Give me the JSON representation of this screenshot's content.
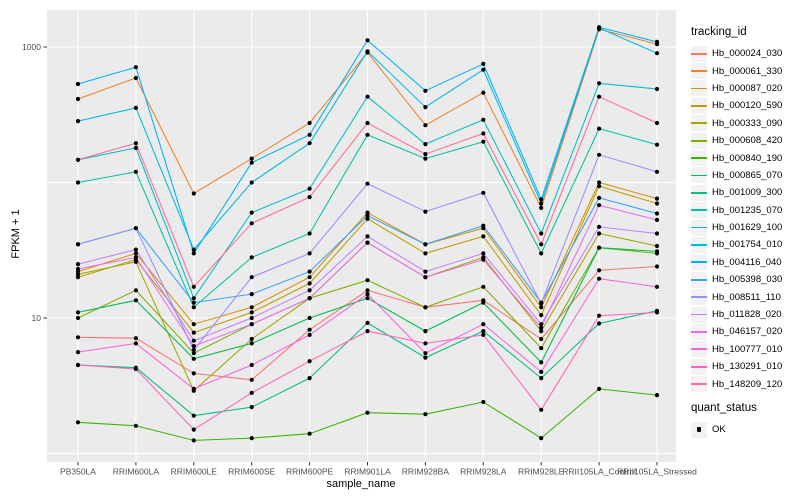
{
  "figure": {
    "y_axis_title": "FPKM + 1",
    "x_axis_title": "sample_name"
  },
  "colors": {
    "panel_background": "#EBEBEB",
    "gridline": "#FFFFFF",
    "tick_mark": "#333333",
    "tick_text": "#4D4D4D",
    "point": "#000000",
    "legend_key_background": "#F2F2F2"
  },
  "legends": {
    "tracking": {
      "title": "tracking_id"
    },
    "quant": {
      "title": "quant_status",
      "entry_label": "OK"
    }
  },
  "chart_data": {
    "type": "line",
    "title": "",
    "xlabel": "sample_name",
    "ylabel": "FPKM + 1",
    "y_scale": "log10",
    "ylim": [
      0.9,
      1800
    ],
    "y_ticks": [
      {
        "value": 10,
        "label": "10"
      },
      {
        "value": 1000,
        "label": "1000"
      }
    ],
    "y_gridlines": [
      1,
      10,
      100,
      1000
    ],
    "legend_position": "right",
    "grid": true,
    "point_marker": "black-dot-every-value",
    "categories": [
      "PB350LA",
      "RRIM600LA",
      "RRIM600LE",
      "RRIM600SE",
      "RRIM600PE",
      "RRIM901LA",
      "RRIM928BA",
      "RRIM928LA",
      "RRIM928LE",
      "RRII105LA_Control",
      "RRII105LA_Stressed"
    ],
    "series": [
      {
        "name": "Hb_000024_030",
        "color": "#F8766D",
        "values": [
          7.2,
          7.1,
          3.9,
          3.5,
          8.2,
          16,
          12,
          13.5,
          7,
          22.5,
          24
        ]
      },
      {
        "name": "Hb_000061_330",
        "color": "#EA8331",
        "values": [
          413,
          590,
          83,
          150,
          275,
          910,
          265,
          460,
          65,
          1350,
          1050
        ]
      },
      {
        "name": "Hb_000087_020",
        "color": "#D89000",
        "values": [
          22,
          30,
          9,
          12,
          20,
          60,
          35,
          46,
          12,
          100,
          76
        ]
      },
      {
        "name": "Hb_000120_590",
        "color": "#C09B00",
        "values": [
          20,
          27,
          7.8,
          11,
          18,
          54,
          30,
          40,
          10.5,
          94,
          70
        ]
      },
      {
        "name": "Hb_000333_090",
        "color": "#A3A500",
        "values": [
          21,
          26,
          2.9,
          7,
          14,
          36,
          20,
          28,
          8,
          42,
          34
        ]
      },
      {
        "name": "Hb_000608_420",
        "color": "#7CAE00",
        "values": [
          10,
          16,
          5.5,
          9,
          14,
          19,
          12,
          17,
          6,
          33,
          30
        ]
      },
      {
        "name": "Hb_000840_190",
        "color": "#39B600",
        "values": [
          1.7,
          1.6,
          1.25,
          1.3,
          1.4,
          2,
          1.95,
          2.4,
          1.3,
          3,
          2.7
        ]
      },
      {
        "name": "Hb_000865_070",
        "color": "#00BB4E",
        "values": [
          11,
          13.5,
          5,
          6.5,
          10,
          14,
          8,
          13,
          4.7,
          33,
          31
        ]
      },
      {
        "name": "Hb_001009_300",
        "color": "#00BF7D",
        "values": [
          4.5,
          4.3,
          1.9,
          2.2,
          3.6,
          9.2,
          5.1,
          8,
          3.6,
          9.1,
          11.3
        ]
      },
      {
        "name": "Hb_001235_070",
        "color": "#00C1A3",
        "values": [
          100,
          120,
          12,
          28,
          42,
          225,
          150,
          200,
          30,
          250,
          190
        ]
      },
      {
        "name": "Hb_001629_100",
        "color": "#00BFC4",
        "values": [
          147,
          180,
          14,
          60,
          90,
          430,
          192,
          290,
          42,
          540,
          490
        ]
      },
      {
        "name": "Hb_001754_010",
        "color": "#00BAE0",
        "values": [
          284,
          355,
          32,
          100,
          195,
          930,
          360,
          680,
          70,
          1380,
          900
        ]
      },
      {
        "name": "Hb_004116_040",
        "color": "#00B0F6",
        "values": [
          533,
          710,
          30,
          140,
          225,
          1120,
          475,
          750,
          75,
          1400,
          1090
        ]
      },
      {
        "name": "Hb_005398_030",
        "color": "#35A2FF",
        "values": [
          35,
          46,
          13,
          15,
          22,
          57,
          35,
          48,
          13,
          77,
          59
        ]
      },
      {
        "name": "Hb_008511_110",
        "color": "#9590FF",
        "values": [
          35,
          46,
          5.8,
          20,
          30,
          98,
          61,
          84,
          12.8,
          160,
          120
        ]
      },
      {
        "name": "Hb_011828_020",
        "color": "#C77CFF",
        "values": [
          25,
          32,
          6.8,
          10,
          16,
          40,
          22,
          30,
          9,
          47,
          42
        ]
      },
      {
        "name": "Hb_046157_020",
        "color": "#E76BF3",
        "values": [
          23,
          28,
          6.2,
          9,
          14,
          36,
          20,
          27,
          8.5,
          68,
          53
        ]
      },
      {
        "name": "Hb_100777_010",
        "color": "#FA62DB",
        "values": [
          5.6,
          6.5,
          3,
          4.5,
          7.5,
          15,
          5.5,
          9,
          4,
          19.5,
          17
        ]
      },
      {
        "name": "Hb_130291_010",
        "color": "#FF62BC",
        "values": [
          4.5,
          4.2,
          1.5,
          2.8,
          4.8,
          8,
          6.5,
          7.5,
          2.1,
          10.4,
          11
        ]
      },
      {
        "name": "Hb_148209_120",
        "color": "#FF6A98",
        "values": [
          147,
          195,
          17,
          50,
          78,
          275,
          162,
          230,
          35,
          430,
          275
        ]
      }
    ],
    "quant_status": {
      "OK": "all points"
    }
  }
}
